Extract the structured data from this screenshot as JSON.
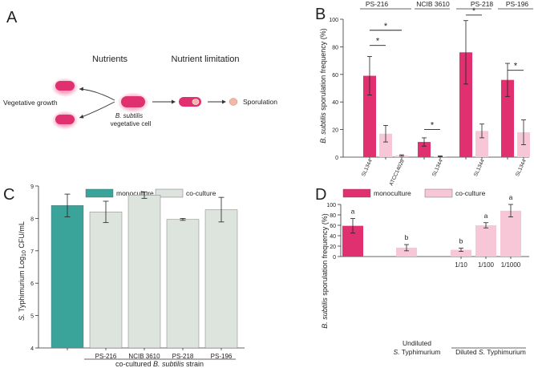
{
  "colors": {
    "magenta": "#E0306F",
    "pink": "#F8C7D7",
    "teal": "#3AA39A",
    "gray": "#DDE3DD",
    "glow": "#F7A9C3",
    "spore": "#F2B7A6"
  },
  "panel_a": {
    "label": "A",
    "nutrients": "Nutrients",
    "nutrient_limitation": "Nutrient limitation",
    "vegetative_growth": "Vegetative growth",
    "cell_species": "B. subtilis",
    "cell_label": "vegetative cell",
    "sporulation": "Sporulation"
  },
  "chart_data": [
    {
      "id": "B",
      "label": "B",
      "type": "bar",
      "ylabel_prefix": "B. subtilis",
      "ylabel_rest": " sporulation frequency (%)",
      "ylim": [
        0,
        100
      ],
      "yticks": [
        0,
        20,
        40,
        60,
        80,
        100
      ],
      "groups": [
        {
          "name": "PS-216",
          "bars": [
            {
              "label": "SL1344",
              "value": 59,
              "err": 14,
              "color": "magenta"
            },
            {
              "label": "",
              "value": 17,
              "err": 6,
              "color": "pink"
            },
            {
              "label": "ATCC14028",
              "value": 1.2,
              "err": 0.5,
              "color": "pink"
            }
          ]
        },
        {
          "name": "NCIB 3610",
          "bars": [
            {
              "label": "",
              "value": 11,
              "err": 3,
              "color": "magenta"
            },
            {
              "label": "SL1344",
              "value": 0.6,
              "err": 0.3,
              "color": "pink"
            }
          ]
        },
        {
          "name": "PS-218",
          "bars": [
            {
              "label": "",
              "value": 76,
              "err": 23,
              "color": "magenta"
            },
            {
              "label": "SL1344",
              "value": 19,
              "err": 5,
              "color": "pink"
            }
          ]
        },
        {
          "name": "PS-196",
          "bars": [
            {
              "label": "",
              "value": 56,
              "err": 12,
              "color": "magenta"
            },
            {
              "label": "SL1344",
              "value": 18,
              "err": 9,
              "color": "pink"
            }
          ]
        }
      ],
      "significance": [
        {
          "group": 0,
          "from": 0,
          "to": 1,
          "y": 81,
          "text": "*"
        },
        {
          "group": 0,
          "from": 0,
          "to": 2,
          "y": 92,
          "text": "*"
        },
        {
          "group": 1,
          "from": 0,
          "to": 1,
          "y": 20,
          "text": "*"
        },
        {
          "group": 2,
          "from": 0,
          "to": 1,
          "y": 103,
          "text": "*"
        },
        {
          "group": 3,
          "from": 0,
          "to": 1,
          "y": 63,
          "text": "*"
        }
      ]
    },
    {
      "id": "C",
      "label": "C",
      "type": "bar",
      "ylabel_parts": [
        "S.",
        " Typhimurium Log",
        "10",
        " CFU/mL"
      ],
      "ylim": [
        4,
        9
      ],
      "yticks": [
        4,
        5,
        6,
        7,
        8,
        9
      ],
      "legend": [
        {
          "name": "monoculture",
          "color": "teal"
        },
        {
          "name": "co-culture",
          "color": "gray"
        }
      ],
      "xlabel_prefix": "co-cultured ",
      "xlabel_species": "B. subtilis",
      "xlabel_suffix": " strain",
      "bars": [
        {
          "label": "",
          "value": 8.4,
          "err": 0.35,
          "color": "teal"
        },
        {
          "label": "PS-216",
          "value": 8.2,
          "err": 0.33,
          "color": "gray"
        },
        {
          "label": "NCIB 3610",
          "value": 8.72,
          "err": 0.1,
          "color": "gray"
        },
        {
          "label": "PS-218",
          "value": 7.97,
          "err": 0.03,
          "color": "gray"
        },
        {
          "label": "PS-196",
          "value": 8.27,
          "err": 0.38,
          "color": "gray"
        }
      ]
    },
    {
      "id": "D",
      "label": "D",
      "type": "bar",
      "ylabel_prefix": "B. subtilis",
      "ylabel_rest": " sporulation frequency (%)",
      "ylim": [
        0,
        100
      ],
      "yticks": [
        0,
        20,
        40,
        60,
        80,
        100
      ],
      "legend": [
        {
          "name": "monoculture",
          "color": "magenta"
        },
        {
          "name": "co-culture",
          "color": "pink"
        }
      ],
      "bars": [
        {
          "label": "",
          "value": 59,
          "err": 14,
          "color": "magenta",
          "letter": "a"
        },
        {
          "label": "",
          "value": 17,
          "err": 6,
          "color": "pink",
          "letter": "b"
        },
        {
          "label": "1/10",
          "value": 13,
          "err": 3,
          "color": "pink",
          "letter": "b"
        },
        {
          "label": "1/100",
          "value": 60,
          "err": 5,
          "color": "pink",
          "letter": "a"
        },
        {
          "label": "1/1000",
          "value": 88,
          "err": 12,
          "color": "pink",
          "letter": "a"
        }
      ],
      "undiluted_line1": "Undiluted",
      "undiluted_species": "S.",
      "undiluted_rest": " Typhimurium",
      "diluted_prefix": "Diluted ",
      "diluted_species": "S.",
      "diluted_rest": " Typhimurium"
    }
  ]
}
